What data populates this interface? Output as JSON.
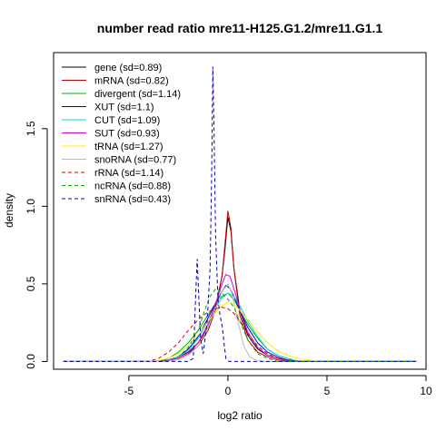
{
  "chart_data": {
    "type": "line",
    "title": "number read ratio mre11-H125.G1.2/mre11.G1.1",
    "xlabel": "log2 ratio",
    "ylabel": "density",
    "xlim": [
      -8.8,
      10
    ],
    "ylim": [
      -0.05,
      1.99
    ],
    "xticks": [
      -5,
      0,
      5,
      10
    ],
    "xtick_labels": [
      "-5",
      "0",
      "5",
      "10"
    ],
    "yticks": [
      0.0,
      0.5,
      1.0,
      1.5
    ],
    "ytick_labels": [
      "0.0",
      "0.5",
      "1.0",
      "1.5"
    ],
    "grid": false,
    "legend_position": "top-left",
    "series": [
      {
        "name": "gene (sd=0.89)",
        "color": "#000000",
        "dash": "solid",
        "points": [
          [
            -8.3,
            0
          ],
          [
            -3.6,
            0
          ],
          [
            -3,
            0.01
          ],
          [
            -2.5,
            0.03
          ],
          [
            -2,
            0.06
          ],
          [
            -1.5,
            0.12
          ],
          [
            -1,
            0.22
          ],
          [
            -0.6,
            0.36
          ],
          [
            -0.3,
            0.55
          ],
          [
            -0.15,
            0.72
          ],
          [
            0,
            0.93
          ],
          [
            0.15,
            0.84
          ],
          [
            0.3,
            0.6
          ],
          [
            0.6,
            0.33
          ],
          [
            1,
            0.17
          ],
          [
            1.5,
            0.08
          ],
          [
            2,
            0.04
          ],
          [
            2.5,
            0.02
          ],
          [
            3,
            0.01
          ],
          [
            3.8,
            0
          ],
          [
            9.5,
            0
          ]
        ]
      },
      {
        "name": "mRNA (sd=0.82)",
        "color": "#cc0000",
        "dash": "solid",
        "points": [
          [
            -8.3,
            0
          ],
          [
            -3.6,
            0
          ],
          [
            -3,
            0.01
          ],
          [
            -2.5,
            0.02
          ],
          [
            -2,
            0.05
          ],
          [
            -1.5,
            0.1
          ],
          [
            -1,
            0.2
          ],
          [
            -0.6,
            0.34
          ],
          [
            -0.3,
            0.55
          ],
          [
            -0.15,
            0.75
          ],
          [
            0,
            0.97
          ],
          [
            0.15,
            0.86
          ],
          [
            0.3,
            0.6
          ],
          [
            0.6,
            0.3
          ],
          [
            1,
            0.14
          ],
          [
            1.5,
            0.06
          ],
          [
            2,
            0.03
          ],
          [
            2.5,
            0.01
          ],
          [
            3.2,
            0
          ],
          [
            9.5,
            0
          ]
        ]
      },
      {
        "name": "divergent (sd=1.14)",
        "color": "#00b000",
        "dash": "solid",
        "points": [
          [
            -8.3,
            0
          ],
          [
            -3.6,
            0
          ],
          [
            -3,
            0.02
          ],
          [
            -2.5,
            0.06
          ],
          [
            -2,
            0.12
          ],
          [
            -1.5,
            0.2
          ],
          [
            -1,
            0.3
          ],
          [
            -0.6,
            0.38
          ],
          [
            -0.3,
            0.42
          ],
          [
            0,
            0.44
          ],
          [
            0.3,
            0.4
          ],
          [
            0.6,
            0.33
          ],
          [
            1,
            0.24
          ],
          [
            1.5,
            0.15
          ],
          [
            2,
            0.08
          ],
          [
            2.5,
            0.04
          ],
          [
            3,
            0.02
          ],
          [
            3.6,
            0
          ],
          [
            9.5,
            0
          ]
        ]
      },
      {
        "name": "XUT (sd=1.1)",
        "color": "#0000dd",
        "dash": "solid",
        "points": [
          [
            -8.3,
            0
          ],
          [
            -3.2,
            0
          ],
          [
            -2.5,
            0.03
          ],
          [
            -2,
            0.08
          ],
          [
            -1.5,
            0.16
          ],
          [
            -1,
            0.28
          ],
          [
            -0.6,
            0.38
          ],
          [
            -0.3,
            0.45
          ],
          [
            -0.1,
            0.49
          ],
          [
            0.1,
            0.47
          ],
          [
            0.3,
            0.42
          ],
          [
            0.6,
            0.33
          ],
          [
            1,
            0.22
          ],
          [
            1.5,
            0.12
          ],
          [
            2,
            0.06
          ],
          [
            2.5,
            0.03
          ],
          [
            3,
            0.01
          ],
          [
            3.6,
            0
          ],
          [
            9.5,
            0
          ]
        ]
      },
      {
        "name": "CUT (sd=1.09)",
        "color": "#00dddd",
        "dash": "solid",
        "points": [
          [
            -8.3,
            0
          ],
          [
            -3.2,
            0
          ],
          [
            -2.5,
            0.03
          ],
          [
            -2,
            0.07
          ],
          [
            -1.5,
            0.15
          ],
          [
            -1,
            0.26
          ],
          [
            -0.6,
            0.35
          ],
          [
            -0.3,
            0.41
          ],
          [
            0,
            0.44
          ],
          [
            0.3,
            0.42
          ],
          [
            0.6,
            0.36
          ],
          [
            1,
            0.26
          ],
          [
            1.5,
            0.16
          ],
          [
            2,
            0.08
          ],
          [
            2.5,
            0.04
          ],
          [
            3,
            0.02
          ],
          [
            3.6,
            0
          ],
          [
            9.5,
            0
          ]
        ]
      },
      {
        "name": "SUT (sd=0.93)",
        "color": "#dd00dd",
        "dash": "solid",
        "points": [
          [
            -8.3,
            0
          ],
          [
            -3.2,
            0
          ],
          [
            -2.5,
            0.02
          ],
          [
            -2,
            0.05
          ],
          [
            -1.5,
            0.12
          ],
          [
            -1,
            0.24
          ],
          [
            -0.6,
            0.38
          ],
          [
            -0.3,
            0.5
          ],
          [
            -0.1,
            0.56
          ],
          [
            0.1,
            0.55
          ],
          [
            0.3,
            0.47
          ],
          [
            0.6,
            0.34
          ],
          [
            1,
            0.19
          ],
          [
            1.5,
            0.09
          ],
          [
            2,
            0.04
          ],
          [
            2.5,
            0.02
          ],
          [
            3.2,
            0
          ],
          [
            9.5,
            0
          ]
        ]
      },
      {
        "name": "tRNA (sd=1.27)",
        "color": "#ffee00",
        "dash": "solid",
        "points": [
          [
            -8.3,
            0
          ],
          [
            -3.8,
            0
          ],
          [
            -3,
            0.02
          ],
          [
            -2.5,
            0.05
          ],
          [
            -2,
            0.1
          ],
          [
            -1.5,
            0.17
          ],
          [
            -1,
            0.26
          ],
          [
            -0.6,
            0.32
          ],
          [
            -0.3,
            0.36
          ],
          [
            0,
            0.38
          ],
          [
            0.3,
            0.37
          ],
          [
            0.6,
            0.33
          ],
          [
            1,
            0.27
          ],
          [
            1.5,
            0.19
          ],
          [
            2,
            0.12
          ],
          [
            2.5,
            0.07
          ],
          [
            3,
            0.04
          ],
          [
            3.5,
            0.02
          ],
          [
            4,
            0.01
          ],
          [
            4.5,
            0
          ],
          [
            9.5,
            0
          ]
        ]
      },
      {
        "name": "snoRNA (sd=0.77)",
        "color": "#bbbbbb",
        "dash": "solid",
        "points": [
          [
            -8.3,
            0
          ],
          [
            -3.2,
            0
          ],
          [
            -2.5,
            0.01
          ],
          [
            -2,
            0.04
          ],
          [
            -1.5,
            0.1
          ],
          [
            -1,
            0.22
          ],
          [
            -0.6,
            0.35
          ],
          [
            -0.3,
            0.45
          ],
          [
            0,
            0.5
          ],
          [
            0.2,
            0.44
          ],
          [
            0.5,
            0.26
          ],
          [
            0.8,
            0.1
          ],
          [
            1.1,
            0.03
          ],
          [
            1.4,
            0.01
          ],
          [
            1.8,
            0
          ],
          [
            9.5,
            0
          ]
        ]
      },
      {
        "name": "rRNA (sd=1.14)",
        "color": "#dd0000",
        "dash": "dashed",
        "points": [
          [
            -8.3,
            0
          ],
          [
            -4,
            0
          ],
          [
            -3.5,
            0.02
          ],
          [
            -3,
            0.06
          ],
          [
            -2.5,
            0.12
          ],
          [
            -2,
            0.2
          ],
          [
            -1.5,
            0.27
          ],
          [
            -1,
            0.32
          ],
          [
            -0.6,
            0.34
          ],
          [
            -0.3,
            0.35
          ],
          [
            0,
            0.34
          ],
          [
            0.3,
            0.31
          ],
          [
            0.6,
            0.26
          ],
          [
            1,
            0.18
          ],
          [
            1.5,
            0.1
          ],
          [
            2,
            0.05
          ],
          [
            2.5,
            0.02
          ],
          [
            3,
            0.01
          ],
          [
            3.5,
            0
          ],
          [
            9.5,
            0
          ]
        ]
      },
      {
        "name": "ncRNA (sd=0.88)",
        "color": "#00b000",
        "dash": "dashed",
        "points": [
          [
            -8.3,
            0
          ],
          [
            -3.2,
            0
          ],
          [
            -2.5,
            0.03
          ],
          [
            -2,
            0.09
          ],
          [
            -1.5,
            0.2
          ],
          [
            -1.2,
            0.32
          ],
          [
            -0.9,
            0.42
          ],
          [
            -0.6,
            0.47
          ],
          [
            -0.3,
            0.44
          ],
          [
            0,
            0.4
          ],
          [
            0.3,
            0.35
          ],
          [
            0.6,
            0.26
          ],
          [
            1,
            0.14
          ],
          [
            1.5,
            0.05
          ],
          [
            2,
            0.02
          ],
          [
            2.5,
            0
          ],
          [
            9.5,
            0
          ]
        ]
      },
      {
        "name": "snRNA (sd=0.43)",
        "color": "#0000bb",
        "dash": "dashed",
        "points": [
          [
            -8.3,
            0
          ],
          [
            -2,
            0
          ],
          [
            -1.75,
            0.02
          ],
          [
            -1.62,
            0.45
          ],
          [
            -1.55,
            0.66
          ],
          [
            -1.48,
            0.45
          ],
          [
            -1.38,
            0.15
          ],
          [
            -1.25,
            0.05
          ],
          [
            -1.05,
            0.25
          ],
          [
            -0.9,
            0.6
          ],
          [
            -0.82,
            1.2
          ],
          [
            -0.76,
            1.9
          ],
          [
            -0.7,
            1.5
          ],
          [
            -0.62,
            0.8
          ],
          [
            -0.5,
            0.4
          ],
          [
            -0.4,
            0.3
          ],
          [
            -0.28,
            0.22
          ],
          [
            -0.18,
            0.1
          ],
          [
            -0.1,
            0.02
          ],
          [
            0.05,
            0
          ],
          [
            9.5,
            0
          ]
        ]
      }
    ]
  }
}
